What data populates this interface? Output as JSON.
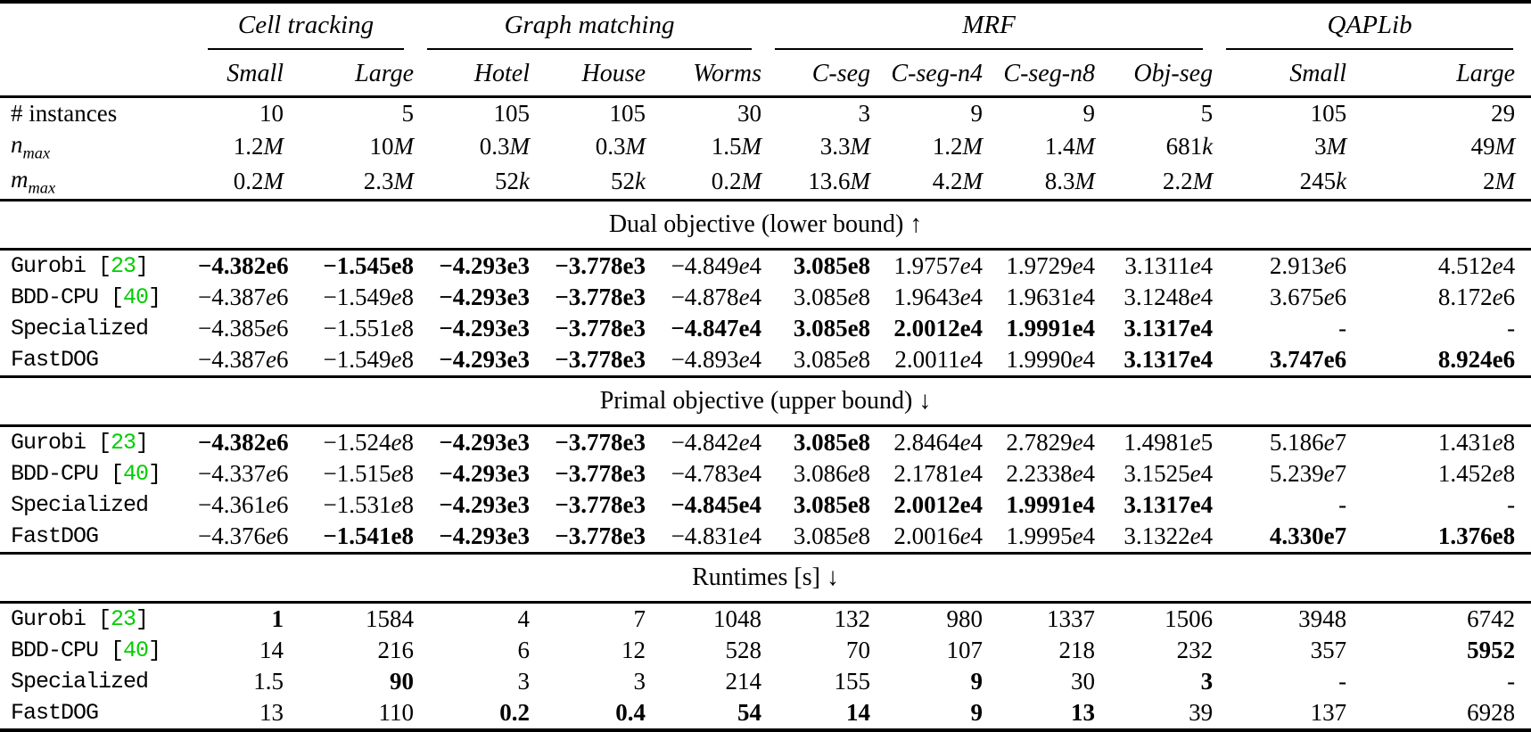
{
  "colors": {
    "citation_green": "#00CE00"
  },
  "table": {
    "groups": [
      {
        "label": "Cell tracking",
        "span": 2
      },
      {
        "label": "Graph matching",
        "span": 3
      },
      {
        "label": "MRF",
        "span": 4
      },
      {
        "label": "QAPLib",
        "span": 2
      }
    ],
    "columns": [
      "Small",
      "Large",
      "Hotel",
      "House",
      "Worms",
      "C-seg",
      "C-seg-n4",
      "C-seg-n8",
      "Obj-seg",
      "Small",
      "Large"
    ],
    "stats_rows": [
      {
        "label": "# instances",
        "cells": [
          "10",
          "5",
          "105",
          "105",
          "30",
          "3",
          "9",
          "9",
          "5",
          "105",
          "29"
        ]
      },
      {
        "label": "n",
        "sub": "max",
        "cells": [
          "1.2M",
          "10M",
          "0.3M",
          "0.3M",
          "1.5M",
          "3.3M",
          "1.2M",
          "1.4M",
          "681k",
          "3M",
          "49M"
        ]
      },
      {
        "label": "m",
        "sub": "max",
        "cells": [
          "0.2M",
          "2.3M",
          "52k",
          "52k",
          "0.2M",
          "13.6M",
          "4.2M",
          "8.3M",
          "2.2M",
          "245k",
          "2M"
        ]
      }
    ],
    "sections": [
      {
        "title": "Dual objective (lower bound) ↑",
        "rows": [
          {
            "solver": "Gurobi",
            "cite": "23",
            "cells": [
              {
                "v": "−4.382e6",
                "b": true
              },
              {
                "v": "−1.545e8",
                "b": true
              },
              {
                "v": "−4.293e3",
                "b": true
              },
              {
                "v": "−3.778e3",
                "b": true
              },
              {
                "v": "−4.849e4",
                "b": false
              },
              {
                "v": "3.085e8",
                "b": true
              },
              {
                "v": "1.9757e4",
                "b": false
              },
              {
                "v": "1.9729e4",
                "b": false
              },
              {
                "v": "3.1311e4",
                "b": false
              },
              {
                "v": "2.913e6",
                "b": false
              },
              {
                "v": "4.512e4",
                "b": false
              }
            ]
          },
          {
            "solver": "BDD-CPU",
            "cite": "40",
            "cells": [
              {
                "v": "−4.387e6",
                "b": false
              },
              {
                "v": "−1.549e8",
                "b": false
              },
              {
                "v": "−4.293e3",
                "b": true
              },
              {
                "v": "−3.778e3",
                "b": true
              },
              {
                "v": "−4.878e4",
                "b": false
              },
              {
                "v": "3.085e8",
                "b": false
              },
              {
                "v": "1.9643e4",
                "b": false
              },
              {
                "v": "1.9631e4",
                "b": false
              },
              {
                "v": "3.1248e4",
                "b": false
              },
              {
                "v": "3.675e6",
                "b": false
              },
              {
                "v": "8.172e6",
                "b": false
              }
            ]
          },
          {
            "solver": "Specialized",
            "cite": null,
            "cells": [
              {
                "v": "−4.385e6",
                "b": false
              },
              {
                "v": "−1.551e8",
                "b": false
              },
              {
                "v": "−4.293e3",
                "b": true
              },
              {
                "v": "−3.778e3",
                "b": true
              },
              {
                "v": "−4.847e4",
                "b": true
              },
              {
                "v": "3.085e8",
                "b": true
              },
              {
                "v": "2.0012e4",
                "b": true
              },
              {
                "v": "1.9991e4",
                "b": true
              },
              {
                "v": "3.1317e4",
                "b": true
              },
              {
                "v": "-",
                "b": false
              },
              {
                "v": "-",
                "b": false
              }
            ]
          },
          {
            "solver": "FastDOG",
            "cite": null,
            "cells": [
              {
                "v": "−4.387e6",
                "b": false
              },
              {
                "v": "−1.549e8",
                "b": false
              },
              {
                "v": "−4.293e3",
                "b": true
              },
              {
                "v": "−3.778e3",
                "b": true
              },
              {
                "v": "−4.893e4",
                "b": false
              },
              {
                "v": "3.085e8",
                "b": false
              },
              {
                "v": "2.0011e4",
                "b": false
              },
              {
                "v": "1.9990e4",
                "b": false
              },
              {
                "v": "3.1317e4",
                "b": true
              },
              {
                "v": "3.747e6",
                "b": true
              },
              {
                "v": "8.924e6",
                "b": true
              }
            ]
          }
        ]
      },
      {
        "title": "Primal objective (upper bound) ↓",
        "rows": [
          {
            "solver": "Gurobi",
            "cite": "23",
            "cells": [
              {
                "v": "−4.382e6",
                "b": true
              },
              {
                "v": "−1.524e8",
                "b": false
              },
              {
                "v": "−4.293e3",
                "b": true
              },
              {
                "v": "−3.778e3",
                "b": true
              },
              {
                "v": "−4.842e4",
                "b": false
              },
              {
                "v": "3.085e8",
                "b": true
              },
              {
                "v": "2.8464e4",
                "b": false
              },
              {
                "v": "2.7829e4",
                "b": false
              },
              {
                "v": "1.4981e5",
                "b": false
              },
              {
                "v": "5.186e7",
                "b": false
              },
              {
                "v": "1.431e8",
                "b": false
              }
            ]
          },
          {
            "solver": "BDD-CPU",
            "cite": "40",
            "cells": [
              {
                "v": "−4.337e6",
                "b": false
              },
              {
                "v": "−1.515e8",
                "b": false
              },
              {
                "v": "−4.293e3",
                "b": true
              },
              {
                "v": "−3.778e3",
                "b": true
              },
              {
                "v": "−4.783e4",
                "b": false
              },
              {
                "v": "3.086e8",
                "b": false
              },
              {
                "v": "2.1781e4",
                "b": false
              },
              {
                "v": "2.2338e4",
                "b": false
              },
              {
                "v": "3.1525e4",
                "b": false
              },
              {
                "v": "5.239e7",
                "b": false
              },
              {
                "v": "1.452e8",
                "b": false
              }
            ]
          },
          {
            "solver": "Specialized",
            "cite": null,
            "cells": [
              {
                "v": "−4.361e6",
                "b": false
              },
              {
                "v": "−1.531e8",
                "b": false
              },
              {
                "v": "−4.293e3",
                "b": true
              },
              {
                "v": "−3.778e3",
                "b": true
              },
              {
                "v": "−4.845e4",
                "b": true
              },
              {
                "v": "3.085e8",
                "b": true
              },
              {
                "v": "2.0012e4",
                "b": true
              },
              {
                "v": "1.9991e4",
                "b": true
              },
              {
                "v": "3.1317e4",
                "b": true
              },
              {
                "v": "-",
                "b": false
              },
              {
                "v": "-",
                "b": false
              }
            ]
          },
          {
            "solver": "FastDOG",
            "cite": null,
            "cells": [
              {
                "v": "−4.376e6",
                "b": false
              },
              {
                "v": "−1.541e8",
                "b": true
              },
              {
                "v": "−4.293e3",
                "b": true
              },
              {
                "v": "−3.778e3",
                "b": true
              },
              {
                "v": "−4.831e4",
                "b": false
              },
              {
                "v": "3.085e8",
                "b": false
              },
              {
                "v": "2.0016e4",
                "b": false
              },
              {
                "v": "1.9995e4",
                "b": false
              },
              {
                "v": "3.1322e4",
                "b": false
              },
              {
                "v": "4.330e7",
                "b": true
              },
              {
                "v": "1.376e8",
                "b": true
              }
            ]
          }
        ]
      },
      {
        "title": "Runtimes [s] ↓",
        "rows": [
          {
            "solver": "Gurobi",
            "cite": "23",
            "cells": [
              {
                "v": "1",
                "b": true
              },
              {
                "v": "1584",
                "b": false
              },
              {
                "v": "4",
                "b": false
              },
              {
                "v": "7",
                "b": false
              },
              {
                "v": "1048",
                "b": false
              },
              {
                "v": "132",
                "b": false
              },
              {
                "v": "980",
                "b": false
              },
              {
                "v": "1337",
                "b": false
              },
              {
                "v": "1506",
                "b": false
              },
              {
                "v": "3948",
                "b": false
              },
              {
                "v": "6742",
                "b": false
              }
            ]
          },
          {
            "solver": "BDD-CPU",
            "cite": "40",
            "cells": [
              {
                "v": "14",
                "b": false
              },
              {
                "v": "216",
                "b": false
              },
              {
                "v": "6",
                "b": false
              },
              {
                "v": "12",
                "b": false
              },
              {
                "v": "528",
                "b": false
              },
              {
                "v": "70",
                "b": false
              },
              {
                "v": "107",
                "b": false
              },
              {
                "v": "218",
                "b": false
              },
              {
                "v": "232",
                "b": false
              },
              {
                "v": "357",
                "b": false
              },
              {
                "v": "5952",
                "b": true
              }
            ]
          },
          {
            "solver": "Specialized",
            "cite": null,
            "cells": [
              {
                "v": "1.5",
                "b": false
              },
              {
                "v": "90",
                "b": true
              },
              {
                "v": "3",
                "b": false
              },
              {
                "v": "3",
                "b": false
              },
              {
                "v": "214",
                "b": false
              },
              {
                "v": "155",
                "b": false
              },
              {
                "v": "9",
                "b": true
              },
              {
                "v": "30",
                "b": false
              },
              {
                "v": "3",
                "b": true
              },
              {
                "v": "-",
                "b": false
              },
              {
                "v": "-",
                "b": false
              }
            ]
          },
          {
            "solver": "FastDOG",
            "cite": null,
            "cells": [
              {
                "v": "13",
                "b": false
              },
              {
                "v": "110",
                "b": false
              },
              {
                "v": "0.2",
                "b": true
              },
              {
                "v": "0.4",
                "b": true
              },
              {
                "v": "54",
                "b": true
              },
              {
                "v": "14",
                "b": true
              },
              {
                "v": "9",
                "b": true
              },
              {
                "v": "13",
                "b": true
              },
              {
                "v": "39",
                "b": false
              },
              {
                "v": "137",
                "b": false
              },
              {
                "v": "6928",
                "b": false
              }
            ]
          }
        ]
      }
    ]
  }
}
